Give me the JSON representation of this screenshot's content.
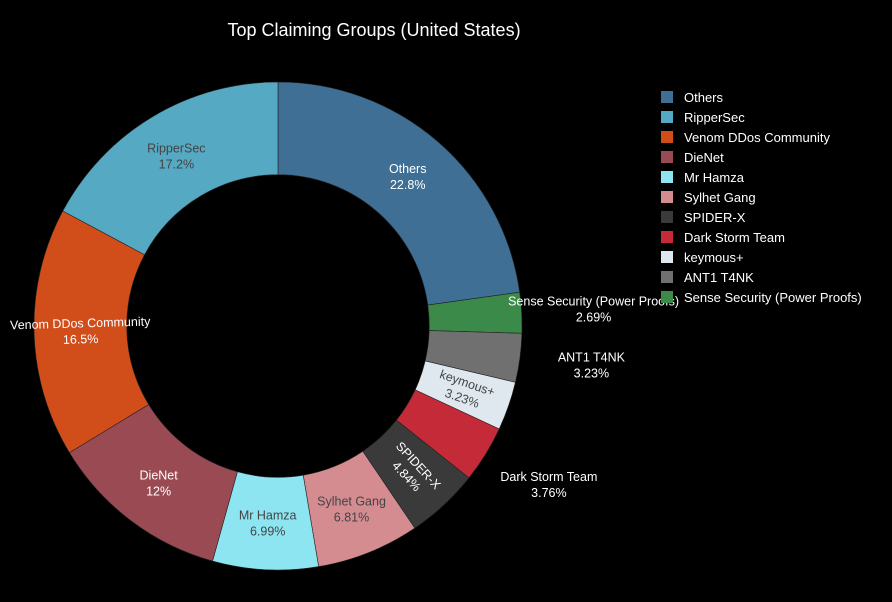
{
  "chart_data": {
    "type": "pie",
    "title": "Top Claiming Groups (United States)",
    "hole": 0.62,
    "legend_position": "right",
    "slices": [
      {
        "label": "Others",
        "value": 22.8,
        "percent_text": "22.8%",
        "color": "#3f6f94",
        "text_color": "#ffffff",
        "label_position": "inside"
      },
      {
        "label": "Sense Security (Power Proofs)",
        "value": 2.69,
        "percent_text": "2.69%",
        "color": "#3c8a4a",
        "text_color": "#ffffff",
        "label_position": "outside"
      },
      {
        "label": "ANT1 T4NK",
        "value": 3.23,
        "percent_text": "3.23%",
        "color": "#707070",
        "text_color": "#ffffff",
        "label_position": "outside"
      },
      {
        "label": "keymous+",
        "value": 3.23,
        "percent_text": "3.23%",
        "color": "#dfe8ef",
        "text_color": "#444444",
        "label_position": "inside-radial"
      },
      {
        "label": "Dark Storm Team",
        "value": 3.76,
        "percent_text": "3.76%",
        "color": "#c42a38",
        "text_color": "#ffffff",
        "label_position": "outside"
      },
      {
        "label": "SPIDER-X",
        "value": 4.84,
        "percent_text": "4.84%",
        "color": "#3a3a3a",
        "text_color": "#ffffff",
        "label_position": "inside-radial"
      },
      {
        "label": "Sylhet Gang",
        "value": 6.81,
        "percent_text": "6.81%",
        "color": "#d48c90",
        "text_color": "#444444",
        "label_position": "inside"
      },
      {
        "label": "Mr Hamza",
        "value": 6.99,
        "percent_text": "6.99%",
        "color": "#8ee5f2",
        "text_color": "#444444",
        "label_position": "inside"
      },
      {
        "label": "DieNet",
        "value": 12.0,
        "percent_text": "12%",
        "color": "#9a4a52",
        "text_color": "#ffffff",
        "label_position": "inside"
      },
      {
        "label": "Venom DDos Community",
        "value": 16.5,
        "percent_text": "16.5%",
        "color": "#d14e1a",
        "text_color": "#ffffff",
        "label_position": "inside-radial"
      },
      {
        "label": "RipperSec",
        "value": 17.2,
        "percent_text": "17.2%",
        "color": "#55a9c2",
        "text_color": "#444444",
        "label_position": "inside"
      }
    ],
    "legend": [
      {
        "label": "Others",
        "color": "#3f6f94"
      },
      {
        "label": "RipperSec",
        "color": "#55a9c2"
      },
      {
        "label": "Venom DDos Community",
        "color": "#d14e1a"
      },
      {
        "label": "DieNet",
        "color": "#9a4a52"
      },
      {
        "label": "Mr Hamza",
        "color": "#8ee5f2"
      },
      {
        "label": "Sylhet Gang",
        "color": "#d48c90"
      },
      {
        "label": "SPIDER-X",
        "color": "#3a3a3a"
      },
      {
        "label": "Dark Storm Team",
        "color": "#c42a38"
      },
      {
        "label": "keymous+",
        "color": "#dfe8ef"
      },
      {
        "label": "ANT1 T4NK",
        "color": "#707070"
      },
      {
        "label": "Sense Security (Power Proofs)",
        "color": "#3c8a4a"
      }
    ]
  }
}
